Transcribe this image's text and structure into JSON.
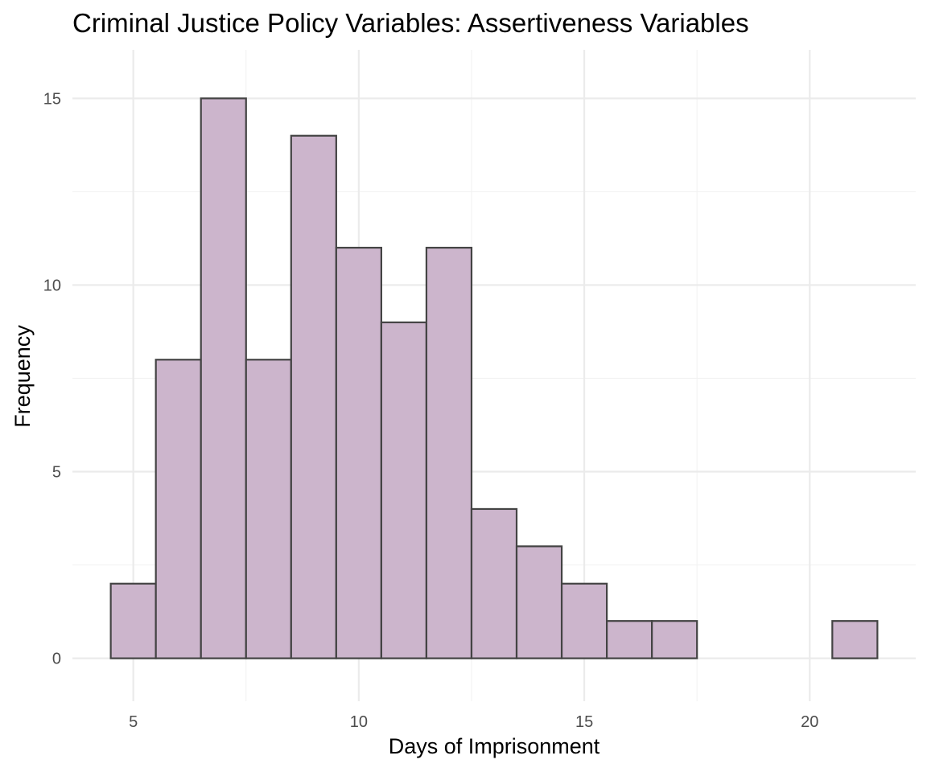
{
  "chart_data": {
    "type": "bar",
    "subtype": "histogram",
    "title": "Criminal Justice Policy Variables: Assertiveness Variables",
    "xlabel": "Days of Imprisonment",
    "ylabel": "Frequency",
    "bin_width": 1,
    "bins": [
      {
        "x": 5,
        "count": 2
      },
      {
        "x": 6,
        "count": 8
      },
      {
        "x": 7,
        "count": 15
      },
      {
        "x": 8,
        "count": 8
      },
      {
        "x": 9,
        "count": 14
      },
      {
        "x": 10,
        "count": 11
      },
      {
        "x": 11,
        "count": 9
      },
      {
        "x": 12,
        "count": 11
      },
      {
        "x": 13,
        "count": 4
      },
      {
        "x": 14,
        "count": 3
      },
      {
        "x": 15,
        "count": 2
      },
      {
        "x": 16,
        "count": 1
      },
      {
        "x": 17,
        "count": 1
      },
      {
        "x": 18,
        "count": 0
      },
      {
        "x": 19,
        "count": 0
      },
      {
        "x": 20,
        "count": 0
      },
      {
        "x": 21,
        "count": 1
      }
    ],
    "x_ticks": [
      "5",
      "10",
      "15",
      "20"
    ],
    "y_ticks": [
      "0",
      "5",
      "10",
      "15"
    ],
    "xlim": [
      3.65,
      22.35
    ],
    "ylim": [
      -1.15,
      16.3
    ],
    "bar_fill": "#ccb5cc",
    "bar_stroke": "#444444",
    "grid": true,
    "legend": "none"
  }
}
